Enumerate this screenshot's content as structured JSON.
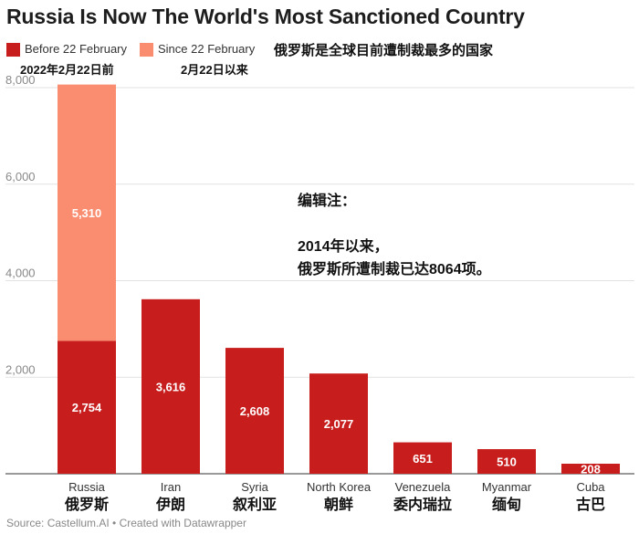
{
  "title": "Russia Is Now The World's Most Sanctioned Country",
  "subtitle_cn": "俄罗斯是全球目前遭制裁最多的国家",
  "legend": [
    {
      "label": "Before 22 February",
      "sublabel": "2022年2月22日前",
      "color": "#c71e1d"
    },
    {
      "label": "Since 22 February",
      "sublabel": "2月22日以来",
      "color": "#fa8c6f"
    }
  ],
  "note": {
    "heading": "编辑注：",
    "line1": "2014年以来，",
    "line2": "俄罗斯所遭制裁已达8064项。"
  },
  "source": "Source: Castellum.AI • Created with Datawrapper",
  "chart_data": {
    "type": "bar",
    "stacked": true,
    "categories": [
      "Russia",
      "Iran",
      "Syria",
      "North Korea",
      "Venezuela",
      "Myanmar",
      "Cuba"
    ],
    "categories_cn": [
      "俄罗斯",
      "伊朗",
      "叙利亚",
      "朝鲜",
      "委内瑞拉",
      "缅甸",
      "古巴"
    ],
    "series": [
      {
        "name": "Before 22 February",
        "values": [
          2754,
          3616,
          2608,
          2077,
          651,
          510,
          208
        ],
        "color": "#c71e1d"
      },
      {
        "name": "Since 22 February",
        "values": [
          5310,
          0,
          0,
          0,
          0,
          0,
          0
        ],
        "color": "#fa8c6f"
      }
    ],
    "labels": {
      "before": [
        "2,754",
        "3,616",
        "2,608",
        "2,077",
        "651",
        "510",
        "208"
      ],
      "since": [
        "5,310",
        "",
        "",
        "",
        "",
        "",
        ""
      ]
    },
    "ylim": [
      0,
      8000
    ],
    "yticks": [
      0,
      2000,
      4000,
      6000,
      8000
    ],
    "ytick_labels": [
      "",
      "2,000",
      "4,000",
      "6,000",
      "8,000"
    ],
    "grid": true
  }
}
